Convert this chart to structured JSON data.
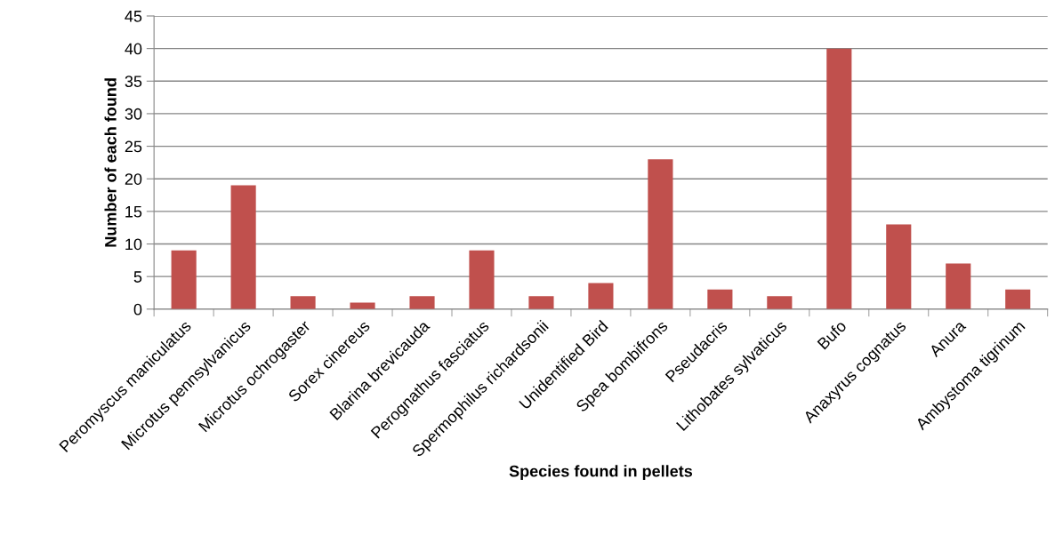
{
  "chart_data": {
    "type": "bar",
    "xlabel": "Species found in pellets",
    "ylabel": "Number of each found",
    "categories": [
      "Peromyscus maniculatus",
      "Microtus pennsylvanicus",
      "Microtus ochrogaster",
      "Sorex cinereus",
      "Blarina brevicauda",
      "Perognathus fasciatus",
      "Spermophilus richardsonii",
      "Unidentified Bird",
      "Spea bombifrons",
      "Pseudacris",
      "Lithobates sylvaticus",
      "Bufo",
      "Anaxyrus cognatus",
      "Anura",
      "Ambystoma tigrinum"
    ],
    "values": [
      9,
      19,
      2,
      1,
      2,
      9,
      2,
      4,
      23,
      3,
      2,
      40,
      13,
      7,
      3
    ],
    "color": "#c0504d",
    "ylim": [
      0,
      45
    ],
    "yticks": [
      0,
      5,
      10,
      15,
      20,
      25,
      30,
      35,
      40,
      45
    ],
    "grid": "y",
    "legend": false
  }
}
